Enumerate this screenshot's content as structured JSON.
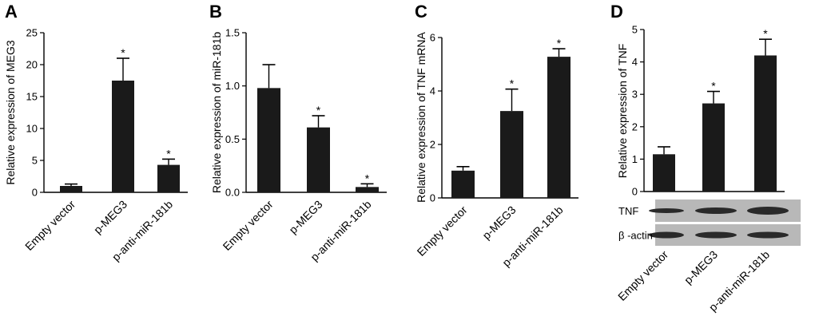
{
  "chart_data": [
    {
      "type": "bar",
      "panel_letter": "A",
      "categories": [
        "Empty vector",
        "p-MEG3",
        "p-anti-miR-181b"
      ],
      "values": [
        1.0,
        17.5,
        4.3
      ],
      "errors": [
        0.3,
        3.5,
        0.9
      ],
      "significance": [
        "",
        "*",
        "*"
      ],
      "ylabel": "Relative expression of MEG3",
      "ylim": [
        0,
        25
      ],
      "yticks": [
        0,
        5,
        10,
        15,
        20,
        25
      ],
      "ytick_labels": [
        "0",
        "5",
        "10",
        "15",
        "20",
        "25"
      ]
    },
    {
      "type": "bar",
      "panel_letter": "B",
      "categories": [
        "Empty vector",
        "p-MEG3",
        "p-anti-miR-181b"
      ],
      "values": [
        0.98,
        0.61,
        0.05
      ],
      "errors": [
        0.22,
        0.11,
        0.03
      ],
      "significance": [
        "",
        "*",
        "*"
      ],
      "ylabel": "Relative expression of miR-181b",
      "ylim": [
        0,
        1.5
      ],
      "yticks": [
        0,
        0.5,
        1.0,
        1.5
      ],
      "ytick_labels": [
        "0.0",
        "0.5",
        "1.0",
        "1.5"
      ]
    },
    {
      "type": "bar",
      "panel_letter": "C",
      "categories": [
        "Empty vector",
        "p-MEG3",
        "p-anti-miR-181b"
      ],
      "values": [
        1.02,
        3.25,
        5.28
      ],
      "errors": [
        0.15,
        0.82,
        0.3
      ],
      "significance": [
        "",
        "*",
        "*"
      ],
      "ylabel": "Relative expression of TNF mRNA",
      "ylim": [
        0,
        6
      ],
      "yticks": [
        0,
        2,
        4,
        6
      ],
      "ytick_labels": [
        "0",
        "2",
        "4",
        "6"
      ]
    },
    {
      "type": "bar",
      "panel_letter": "D",
      "categories": [
        "Empty vector",
        "p-MEG3",
        "p-anti-miR-181b"
      ],
      "values": [
        1.15,
        2.72,
        4.2
      ],
      "errors": [
        0.23,
        0.37,
        0.5
      ],
      "significance": [
        "",
        "*",
        "*"
      ],
      "ylabel": "Relative expression of TNF",
      "ylim": [
        0,
        5
      ],
      "yticks": [
        0,
        1,
        2,
        3,
        4,
        5
      ],
      "ytick_labels": [
        "0",
        "1",
        "2",
        "3",
        "4",
        "5"
      ],
      "blot_labels": [
        "TNF",
        "β -actin"
      ]
    }
  ],
  "style": {
    "bar_color": "#1a1a1a",
    "axis_color": "#000000",
    "blot_background": "#b8b8b8",
    "band_color": "#2a2a2a"
  }
}
